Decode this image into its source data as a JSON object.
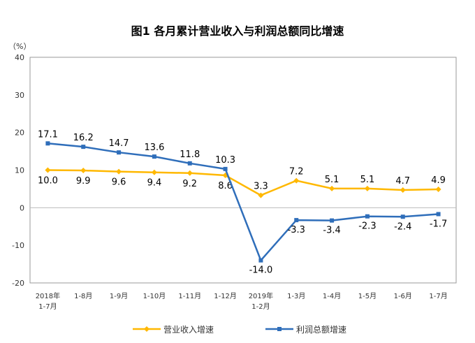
{
  "chart_data": {
    "type": "line",
    "title": "图1  各月累计营业收入与利润总额同比增速",
    "ylabel": "（%）",
    "ylim": [
      -20,
      40
    ],
    "yticks": [
      -20,
      -10,
      0,
      10,
      20,
      30,
      40
    ],
    "grid": false,
    "legend_position": "bottom",
    "categories": [
      [
        "2018年",
        "1-7月"
      ],
      [
        "1-8月"
      ],
      [
        "1-9月"
      ],
      [
        "1-10月"
      ],
      [
        "1-11月"
      ],
      [
        "1-12月"
      ],
      [
        "2019年",
        "1-2月"
      ],
      [
        "1-3月"
      ],
      [
        "1-4月"
      ],
      [
        "1-5月"
      ],
      [
        "1-6月"
      ],
      [
        "1-7月"
      ]
    ],
    "series": [
      {
        "name": "营业收入增速",
        "color": "#FFB800",
        "marker": "diamond",
        "values": [
          10.0,
          9.9,
          9.6,
          9.4,
          9.2,
          8.6,
          3.3,
          7.2,
          5.1,
          5.1,
          4.7,
          4.9
        ]
      },
      {
        "name": "利润总额增速",
        "color": "#2F6EBA",
        "marker": "square",
        "values": [
          17.1,
          16.2,
          14.7,
          13.6,
          11.8,
          10.3,
          -14.0,
          -3.3,
          -3.4,
          -2.3,
          -2.4,
          -1.7
        ]
      }
    ]
  }
}
